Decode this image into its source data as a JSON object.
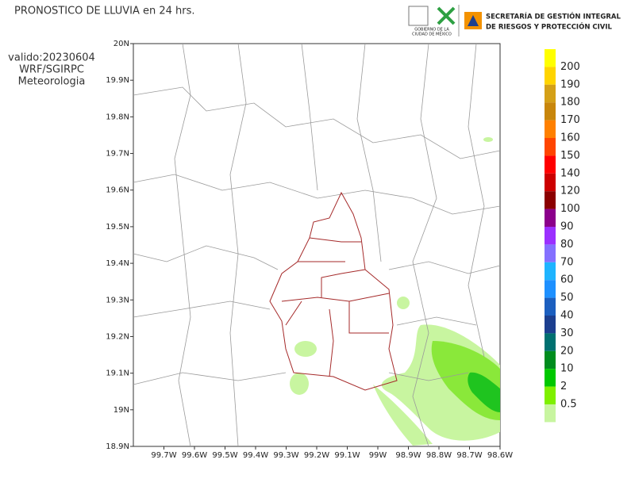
{
  "header": {
    "title": "PRONOSTICO DE LLUVIA en 24 hrs.",
    "valid": "valido:20230604",
    "model": "WRF/SGIRPC",
    "department": "Meteorologia",
    "logo_gov": [
      "GOBIERNO DE LA",
      "CIUDAD DE MÉXICO"
    ],
    "agency": [
      "SECRETARÍA DE GESTIÓN INTEGRAL",
      "DE RIESGOS Y PROTECCIÓN CIVIL"
    ]
  },
  "map": {
    "lat_labels": [
      "20N",
      "19.9N",
      "19.8N",
      "19.7N",
      "19.6N",
      "19.5N",
      "19.4N",
      "19.3N",
      "19.2N",
      "19.1N",
      "19N",
      "18.9N"
    ],
    "lon_labels": [
      "99.7W",
      "99.6W",
      "99.5W",
      "99.4W",
      "99.3W",
      "99.2W",
      "99.1W",
      "99W",
      "98.9W",
      "98.8W",
      "98.7W",
      "98.6W"
    ]
  },
  "legend": {
    "levels": [
      {
        "label": 200,
        "color": "#ffff00"
      },
      {
        "label": 190,
        "color": "#ffd400"
      },
      {
        "label": 180,
        "color": "#d4a017"
      },
      {
        "label": 170,
        "color": "#c8860b"
      },
      {
        "label": 160,
        "color": "#ff8000"
      },
      {
        "label": 150,
        "color": "#ff4500"
      },
      {
        "label": 140,
        "color": "#ff0000"
      },
      {
        "label": 120,
        "color": "#cc0000"
      },
      {
        "label": 100,
        "color": "#8b0000"
      },
      {
        "label": 90,
        "color": "#8b008b"
      },
      {
        "label": 80,
        "color": "#9b30ff"
      },
      {
        "label": 70,
        "color": "#8470ff"
      },
      {
        "label": 60,
        "color": "#1eb4ff"
      },
      {
        "label": 50,
        "color": "#1e90ff"
      },
      {
        "label": 40,
        "color": "#1c5fbf"
      },
      {
        "label": 30,
        "color": "#1c3f8f"
      },
      {
        "label": 20,
        "color": "#007070"
      },
      {
        "label": 10,
        "color": "#008c1e"
      },
      {
        "label": 2,
        "color": "#00c800"
      },
      {
        "label": 0.5,
        "color": "#7ff000"
      }
    ],
    "bottom_color": "#c8f5a0"
  }
}
